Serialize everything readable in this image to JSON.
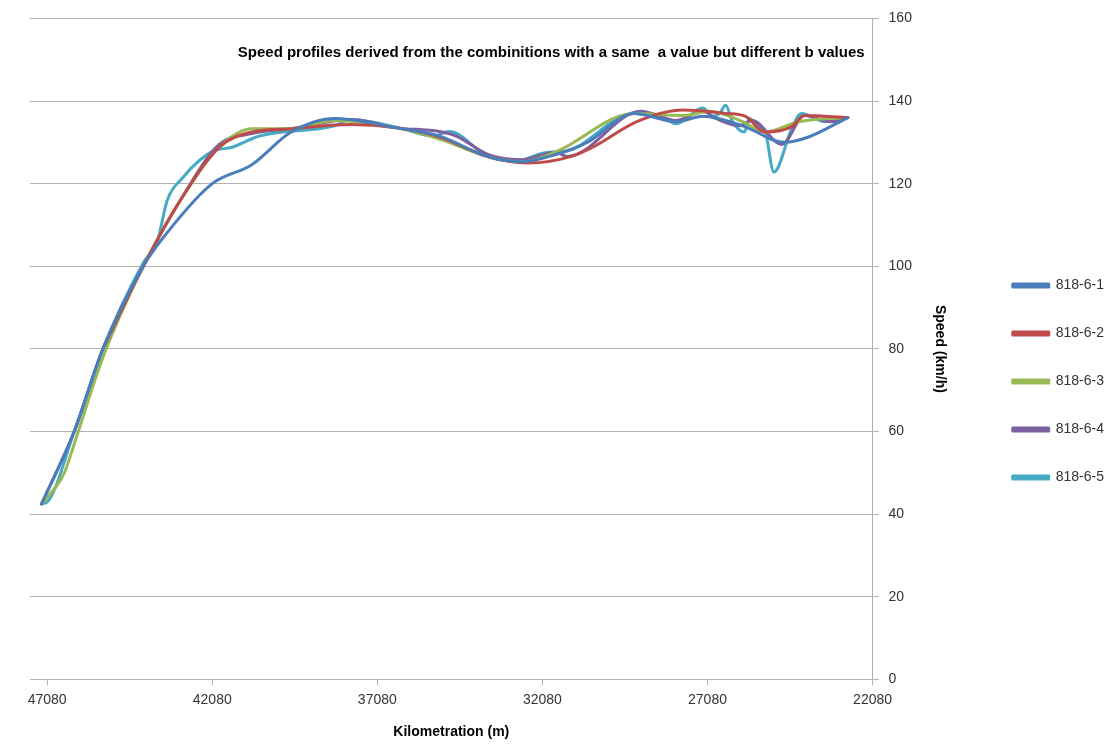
{
  "chart_data": {
    "type": "line",
    "title": "Speed profiles derived from the combinitions with a same  a value but different b values",
    "xlabel": "Kilometration (m)",
    "ylabel": "Speed (km/h)",
    "xlim": [
      47600,
      22080
    ],
    "xticks": [
      47080,
      42080,
      37080,
      32080,
      27080,
      22080
    ],
    "ylim": [
      0,
      160
    ],
    "yticks": [
      0,
      20,
      40,
      60,
      80,
      100,
      120,
      140,
      160
    ],
    "grid": "y",
    "legend": "right",
    "marker": "none",
    "line_style": "solid",
    "series": [
      {
        "name": "818-6-1",
        "color": "#4a7ebb",
        "x": [
          47250,
          46260,
          45390,
          44170,
          43360,
          42080,
          40880,
          39690,
          38370,
          37890,
          36490,
          35200,
          33710,
          32690,
          31700,
          30720,
          29310,
          28030,
          27220,
          26020,
          24740,
          24020,
          22830
        ],
        "values": [
          42.5,
          60,
          80,
          100,
          109,
          120,
          124.6,
          132.5,
          135.8,
          135.5,
          133.5,
          131.5,
          126.5,
          125.3,
          127,
          130,
          137,
          135,
          136.3,
          134,
          130,
          131.3,
          136
        ]
      },
      {
        "name": "818-6-2",
        "color": "#be4b48",
        "x": [
          45390,
          44170,
          43060,
          41870,
          40880,
          39690,
          37890,
          36490,
          35200,
          33710,
          32510,
          31200,
          30510,
          29220,
          27820,
          26530,
          25930,
          25340,
          24530,
          24140,
          22830
        ],
        "values": [
          80,
          100,
          115.8,
          128.8,
          132.5,
          133.3,
          134.3,
          133.5,
          131.3,
          126.5,
          125,
          126.6,
          129,
          135,
          137.8,
          137,
          136.3,
          132.5,
          133.8,
          136.5,
          136
        ]
      },
      {
        "name": "818-6-3",
        "color": "#98b954",
        "x": [
          47180,
          46560,
          46260,
          45390,
          44170,
          43060,
          41870,
          40880,
          39690,
          38370,
          36490,
          35200,
          33710,
          32690,
          31700,
          29310,
          27820,
          27010,
          26020,
          25340,
          24320,
          22830
        ],
        "values": [
          43,
          50,
          57,
          78,
          100,
          115.8,
          128.8,
          133.3,
          133.3,
          135.3,
          133.5,
          130.8,
          126.5,
          125.3,
          127.6,
          137,
          136.5,
          137.5,
          135,
          132.5,
          135,
          136
        ]
      },
      {
        "name": "818-6-4",
        "color": "#7d60a0",
        "x": [
          47250,
          46260,
          45390,
          44170,
          43060,
          41870,
          40970,
          39690,
          37890,
          36490,
          35200,
          34690,
          33710,
          32690,
          31700,
          31310,
          29100,
          28030,
          27220,
          26830,
          26110,
          25730,
          24830,
          24140,
          23340,
          22830
        ],
        "values": [
          42.5,
          60,
          80,
          100,
          115.8,
          129.5,
          132,
          133.3,
          135.5,
          133.5,
          132.6,
          131.5,
          127,
          125.8,
          127.6,
          126.6,
          137.5,
          135.3,
          137.5,
          135.8,
          134,
          135.3,
          129.5,
          136.5,
          135,
          136
        ]
      },
      {
        "name": "818-6-5",
        "color": "#46aac5",
        "x": [
          47250,
          47070,
          46260,
          45390,
          44170,
          43750,
          43450,
          42970,
          42080,
          41480,
          40670,
          38370,
          37890,
          36400,
          35380,
          34900,
          33710,
          32900,
          31910,
          31400,
          29310,
          28500,
          28030,
          27220,
          26920,
          26710,
          26530,
          26320,
          25960,
          25820,
          25520,
          25340,
          25070,
          24530,
          24230,
          23540,
          22830
        ],
        "values": [
          42.5,
          43,
          60,
          80,
          100.8,
          105.8,
          115.8,
          121.5,
          127.8,
          128.8,
          131.5,
          134,
          135.5,
          133.5,
          131.5,
          132.6,
          126.5,
          125.5,
          127.6,
          127.8,
          137,
          136.5,
          134.5,
          138.3,
          136.3,
          137,
          139,
          135,
          132.5,
          135.8,
          133.8,
          132.8,
          122.8,
          133.3,
          137,
          135,
          136
        ]
      }
    ]
  }
}
